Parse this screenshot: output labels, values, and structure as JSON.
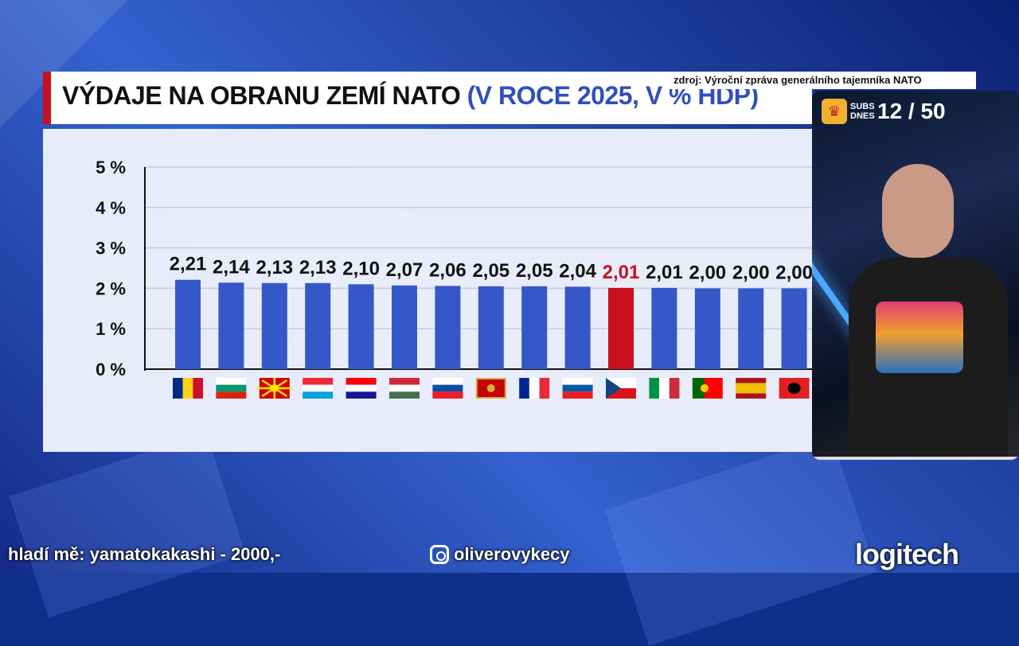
{
  "title": {
    "main": "VÝDAJE NA OBRANU ZEMÍ NATO",
    "sub": "(V ROCE 2025, V % HDP)"
  },
  "source": "zdroj: Výroční zpráva generálního tajemníka NATO",
  "colors": {
    "bar": "#3558c8",
    "highlight": "#c8101e",
    "accent": "#c8101e"
  },
  "chart_data": {
    "type": "bar",
    "title": "VÝDAJE NA OBRANU ZEMÍ NATO (V ROCE 2025, V % HDP)",
    "xlabel": "",
    "ylabel": "",
    "ylim": [
      0,
      5
    ],
    "yticks": [
      "0 %",
      "1 %",
      "2 %",
      "3 %",
      "4 %",
      "5 %"
    ],
    "grid": true,
    "categories": [
      "Romania",
      "Bulgaria",
      "North Macedonia",
      "Luxembourg",
      "Croatia",
      "Hungary",
      "Slovakia",
      "Montenegro",
      "France",
      "Slovenia",
      "Czechia",
      "Italy",
      "Portugal",
      "Spain",
      "Albania"
    ],
    "labels": [
      "2,21",
      "2,14",
      "2,13",
      "2,13",
      "2,10",
      "2,07",
      "2,06",
      "2,05",
      "2,05",
      "2,04",
      "2,01",
      "2,01",
      "2,00",
      "2,00",
      "2,00"
    ],
    "values": [
      2.21,
      2.14,
      2.13,
      2.13,
      2.1,
      2.07,
      2.06,
      2.05,
      2.05,
      2.04,
      2.01,
      2.01,
      2.0,
      2.0,
      2.0
    ],
    "highlight_index": 10
  },
  "webcam": {
    "subs_label": "SUBS DNES",
    "subs_count": "12 / 50"
  },
  "footer": {
    "donation": "hladí mě: yamatokakashi - 2000,-",
    "instagram": "oliverovykecy",
    "brand": "logitech"
  }
}
